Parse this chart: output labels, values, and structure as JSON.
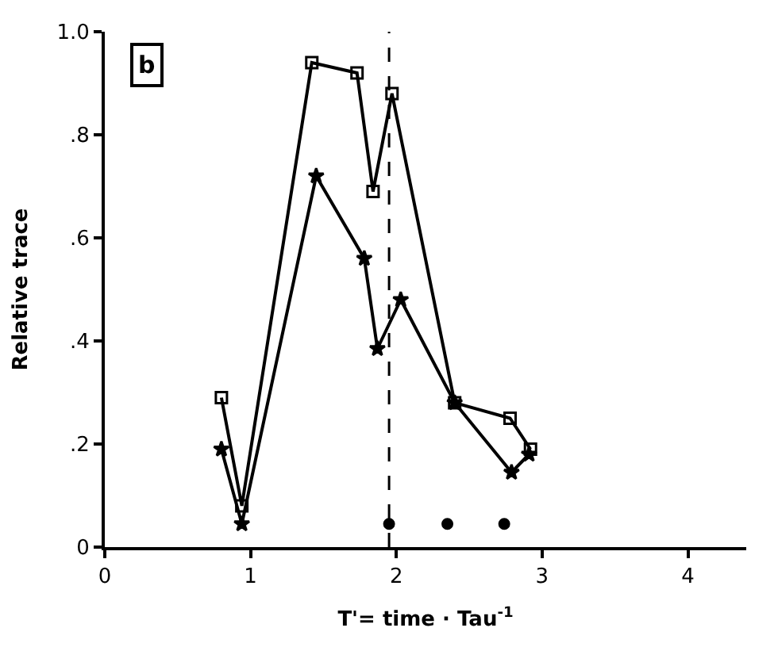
{
  "chart_data": {
    "type": "line",
    "xlabel": "T'= time · Tau$^{-1}$",
    "ylabel": "Relative trace",
    "annotations": [
      "b"
    ],
    "xlim": [
      0,
      4.4
    ],
    "ylim": [
      0,
      1.0
    ],
    "xticks": [
      0,
      1,
      2,
      3,
      4
    ],
    "yticks": [
      0,
      {
        "value": 0.2,
        "label": ".2"
      },
      {
        "value": 0.4,
        "label": ".4"
      },
      {
        "value": 0.6,
        "label": ".6"
      },
      {
        "value": 0.8,
        "label": ".8"
      },
      {
        "value": 1.0,
        "label": "1.0"
      }
    ],
    "ref_lines": [
      {
        "axis": "x",
        "value": 1.95,
        "line_style": "dashed",
        "color": "#000000"
      }
    ],
    "series": [
      {
        "color": "#000000",
        "marker": "square",
        "x": [
          0.8,
          0.94,
          1.42,
          1.73,
          1.84,
          1.97,
          2.4,
          2.78,
          2.92
        ],
        "values": [
          0.29,
          0.08,
          0.94,
          0.92,
          0.69,
          0.88,
          0.28,
          0.25,
          0.19
        ]
      },
      {
        "color": "#000000",
        "marker": "star",
        "x": [
          0.8,
          0.94,
          1.45,
          1.78,
          1.87,
          2.03,
          2.4,
          2.79,
          2.91
        ],
        "values": [
          0.19,
          0.045,
          0.72,
          0.56,
          0.385,
          0.48,
          0.28,
          0.145,
          0.18
        ]
      },
      {
        "type": "scatter",
        "color": "#000000",
        "marker": "circle",
        "x": [
          1.95,
          2.35,
          2.74
        ],
        "values": [
          0.045,
          0.045,
          0.045
        ]
      }
    ]
  }
}
